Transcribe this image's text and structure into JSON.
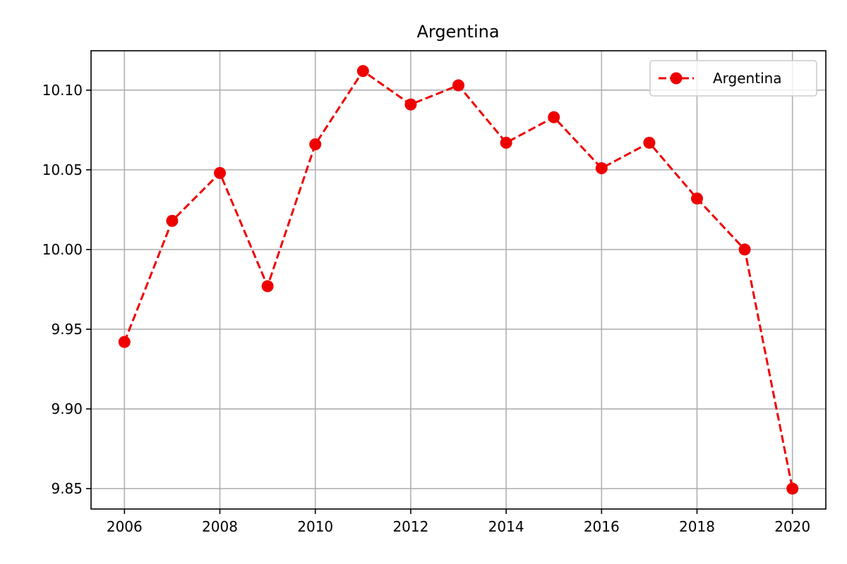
{
  "chart_data": {
    "type": "line",
    "title": "Argentina",
    "xlabel": "",
    "ylabel": "",
    "x": [
      2006,
      2007,
      2008,
      2009,
      2010,
      2011,
      2012,
      2013,
      2014,
      2015,
      2016,
      2017,
      2018,
      2019,
      2020
    ],
    "series": [
      {
        "name": "Argentina",
        "color": "#ee0000",
        "line_style": "dashed",
        "marker": "circle",
        "values": [
          9.942,
          10.018,
          10.048,
          9.977,
          10.066,
          10.112,
          10.091,
          10.103,
          10.067,
          10.083,
          10.051,
          10.067,
          10.032,
          10.0,
          9.85
        ]
      }
    ],
    "x_ticks": [
      "2006",
      "2008",
      "2010",
      "2012",
      "2014",
      "2016",
      "2018",
      "2020"
    ],
    "y_ticks": [
      "9.85",
      "9.90",
      "9.95",
      "10.00",
      "10.05",
      "10.10"
    ],
    "xlim": [
      2005.3,
      2020.7
    ],
    "ylim": [
      9.8372,
      10.1247
    ],
    "grid": true,
    "legend_position": "top-right"
  }
}
